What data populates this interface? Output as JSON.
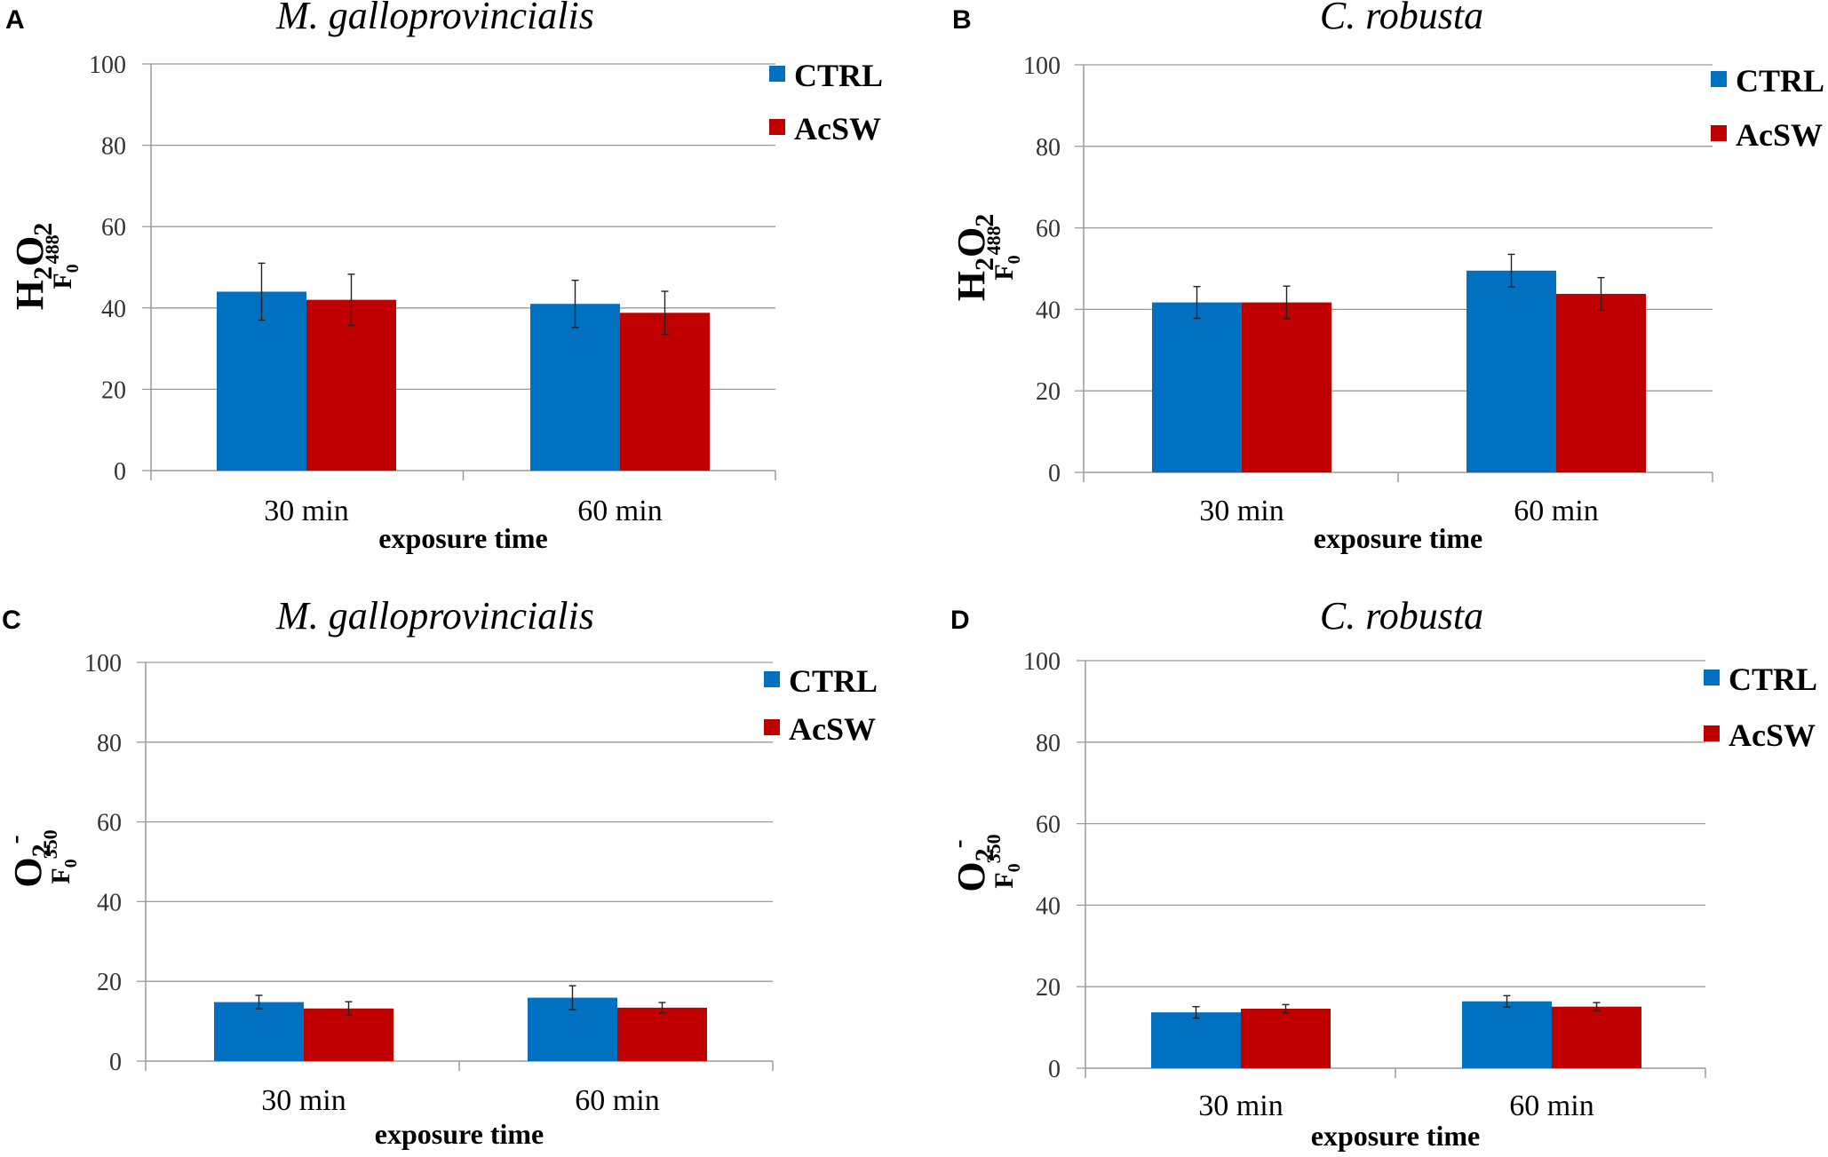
{
  "chart_data": [
    {
      "type": "bar",
      "panel": "A",
      "title": "M. galloprovincialis",
      "ylabel": {
        "main": "H",
        "sub1": "2",
        "main2": "O",
        "sub2": "2",
        "f": "F",
        "fsub": "0",
        "fsup": "488"
      },
      "xlabel": "exposure time",
      "categories": [
        "30 min",
        "60 min"
      ],
      "ylim": [
        0,
        100
      ],
      "yticks": [
        0,
        20,
        40,
        60,
        80,
        100
      ],
      "legend_position": "top-right",
      "colors": {
        "CTRL": "#0070c0",
        "AcSW": "#c00000"
      },
      "series": [
        {
          "name": "CTRL",
          "values": [
            44,
            41
          ],
          "errors": [
            7,
            5.8
          ]
        },
        {
          "name": "AcSW",
          "values": [
            42,
            38.8
          ],
          "errors": [
            6.3,
            5.3
          ]
        }
      ]
    },
    {
      "type": "bar",
      "panel": "B",
      "title": "C. robusta",
      "ylabel": {
        "main": "H",
        "sub1": "2",
        "main2": "O",
        "sub2": "2",
        "f": "F",
        "fsub": "0",
        "fsup": "488"
      },
      "xlabel": "exposure time",
      "categories": [
        "30 min",
        "60 min"
      ],
      "ylim": [
        0,
        100
      ],
      "yticks": [
        0,
        20,
        40,
        60,
        80,
        100
      ],
      "legend_position": "top-right",
      "colors": {
        "CTRL": "#0070c0",
        "AcSW": "#c00000"
      },
      "series": [
        {
          "name": "CTRL",
          "values": [
            41.7,
            49.5
          ],
          "errors": [
            3.9,
            4
          ]
        },
        {
          "name": "AcSW",
          "values": [
            41.7,
            43.8
          ],
          "errors": [
            4,
            4
          ]
        }
      ]
    },
    {
      "type": "bar",
      "panel": "C",
      "title": "M. galloprovincialis",
      "ylabel": {
        "main": "O",
        "sub1": "2",
        "sup1": "-",
        "f": "F",
        "fsub": "0",
        "fsup": "350"
      },
      "xlabel": "exposure time",
      "categories": [
        "30 min",
        "60 min"
      ],
      "ylim": [
        0,
        100
      ],
      "yticks": [
        0,
        20,
        40,
        60,
        80,
        100
      ],
      "legend_position": "top-right",
      "colors": {
        "CTRL": "#0070c0",
        "AcSW": "#c00000"
      },
      "series": [
        {
          "name": "CTRL",
          "values": [
            14.8,
            15.9
          ],
          "errors": [
            1.7,
            3
          ]
        },
        {
          "name": "AcSW",
          "values": [
            13.2,
            13.4
          ],
          "errors": [
            1.7,
            1.3
          ]
        }
      ]
    },
    {
      "type": "bar",
      "panel": "D",
      "title": "C. robusta",
      "ylabel": {
        "main": "O",
        "sub1": "2",
        "sup1": "-",
        "f": "F",
        "fsub": "0",
        "fsup": "350"
      },
      "xlabel": "exposure time",
      "categories": [
        "30 min",
        "60 min"
      ],
      "ylim": [
        0,
        100
      ],
      "yticks": [
        0,
        20,
        40,
        60,
        80,
        100
      ],
      "legend_position": "top-right",
      "colors": {
        "CTRL": "#0070c0",
        "AcSW": "#c00000"
      },
      "series": [
        {
          "name": "CTRL",
          "values": [
            13.7,
            16.4
          ],
          "errors": [
            1.4,
            1.4
          ]
        },
        {
          "name": "AcSW",
          "values": [
            14.6,
            15.1
          ],
          "errors": [
            1,
            1
          ]
        }
      ]
    }
  ]
}
